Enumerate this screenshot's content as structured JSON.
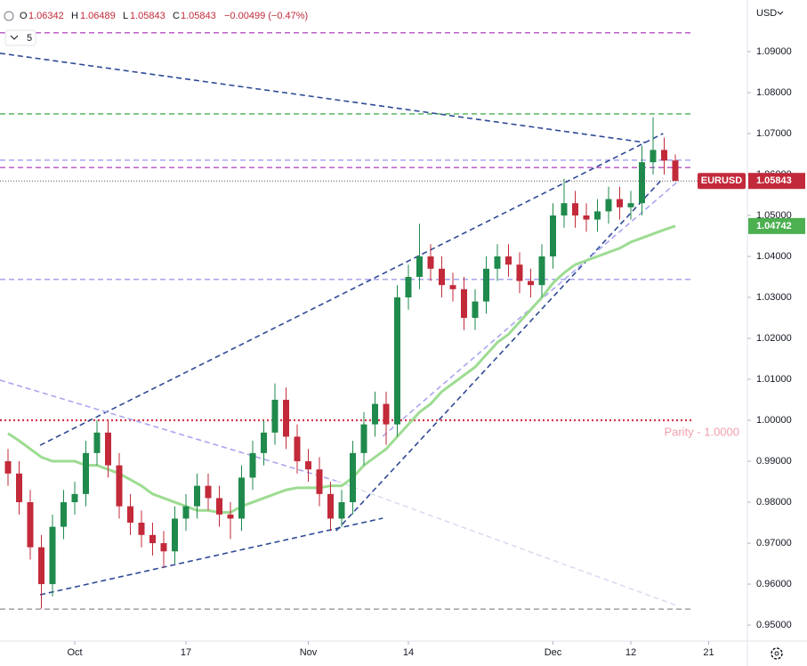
{
  "chart_data": {
    "type": "candlestick",
    "header": {
      "open_key": "O",
      "open": "1.06342",
      "high_key": "H",
      "high": "1.06489",
      "low_key": "L",
      "low": "1.05843",
      "close_key": "C",
      "close": "1.05843",
      "change": "−0.00499 (−0.47%)"
    },
    "indicator_count": "5",
    "currency": "USD",
    "symbol": "EURUSD",
    "categories": [
      null,
      null,
      null,
      null,
      null,
      null,
      "Oct",
      null,
      null,
      null,
      null,
      null,
      null,
      null,
      null,
      null,
      "17",
      null,
      null,
      null,
      null,
      null,
      null,
      null,
      null,
      null,
      null,
      "Nov",
      null,
      null,
      null,
      null,
      null,
      null,
      null,
      null,
      "14",
      null,
      null,
      null,
      null,
      null,
      null,
      null,
      null,
      null,
      null,
      null,
      null,
      "Dec",
      null,
      null,
      null,
      null,
      null,
      null,
      "12",
      null,
      null,
      null,
      null,
      null,
      null,
      "21"
    ],
    "open": [
      0.99,
      0.987,
      0.98,
      0.969,
      0.96,
      0.974,
      0.98,
      0.982,
      0.992,
      0.997,
      0.989,
      0.979,
      0.975,
      0.972,
      0.97,
      0.968,
      0.976,
      0.979,
      0.984,
      0.981,
      0.977,
      0.976,
      0.986,
      0.992,
      0.997,
      1.005,
      0.996,
      0.99,
      0.988,
      0.982,
      0.976,
      0.98,
      0.992,
      0.999,
      1.004,
      0.999,
      1.03,
      1.035,
      1.04,
      1.037,
      1.033,
      1.032,
      1.025,
      1.029,
      1.037,
      1.04,
      1.038,
      1.034,
      1.033,
      1.04,
      1.05,
      1.053,
      1.05,
      1.049,
      1.051,
      1.054,
      1.052,
      1.053,
      1.063,
      1.066,
      1.06342,
      null,
      null,
      null
    ],
    "high": [
      0.993,
      0.99,
      0.983,
      0.972,
      0.977,
      0.983,
      0.985,
      0.995,
      1.0,
      1.0,
      0.992,
      0.982,
      0.978,
      0.975,
      0.973,
      0.979,
      0.982,
      0.987,
      0.987,
      0.984,
      0.98,
      0.989,
      0.995,
      1.0,
      1.009,
      1.008,
      0.999,
      0.993,
      0.991,
      0.985,
      0.983,
      0.995,
      1.002,
      1.007,
      1.007,
      1.033,
      1.038,
      1.048,
      1.043,
      1.04,
      1.036,
      1.035,
      1.032,
      1.04,
      1.043,
      1.043,
      1.041,
      1.037,
      1.043,
      1.053,
      1.059,
      1.056,
      1.053,
      1.054,
      1.057,
      1.057,
      1.056,
      1.067,
      1.074,
      1.069,
      1.06489,
      null,
      null,
      null
    ],
    "low": [
      0.984,
      0.977,
      0.966,
      0.954,
      0.957,
      0.971,
      0.977,
      0.979,
      0.989,
      0.986,
      0.976,
      0.972,
      0.969,
      0.967,
      0.964,
      0.965,
      0.973,
      0.976,
      0.978,
      0.974,
      0.971,
      0.973,
      0.983,
      0.989,
      0.994,
      0.993,
      0.987,
      0.985,
      0.979,
      0.973,
      0.974,
      0.977,
      0.989,
      0.996,
      0.994,
      0.996,
      1.027,
      1.032,
      1.034,
      1.03,
      1.029,
      1.022,
      1.022,
      1.026,
      1.034,
      1.035,
      1.031,
      1.03,
      1.03,
      1.037,
      1.047,
      1.047,
      1.046,
      1.046,
      1.048,
      1.049,
      1.049,
      1.05,
      1.06,
      1.06,
      1.05843,
      null,
      null,
      null
    ],
    "close": [
      0.987,
      0.98,
      0.969,
      0.96,
      0.974,
      0.98,
      0.982,
      0.992,
      0.997,
      0.989,
      0.979,
      0.975,
      0.972,
      0.97,
      0.968,
      0.976,
      0.979,
      0.984,
      0.981,
      0.977,
      0.976,
      0.986,
      0.992,
      0.997,
      1.005,
      0.996,
      0.99,
      0.988,
      0.982,
      0.976,
      0.98,
      0.992,
      0.999,
      1.004,
      0.999,
      1.03,
      1.035,
      1.04,
      1.037,
      1.033,
      1.032,
      1.025,
      1.029,
      1.037,
      1.04,
      1.038,
      1.034,
      1.033,
      1.04,
      1.05,
      1.053,
      1.05,
      1.049,
      1.051,
      1.054,
      1.052,
      1.053,
      1.063,
      1.066,
      1.0634,
      1.05843,
      null,
      null,
      null
    ],
    "up_color": "#1f8a4c",
    "down_color": "#c22a3a",
    "moving_average": {
      "color": "#9ddc92",
      "values": [
        0.9968,
        0.995,
        0.993,
        0.991,
        0.99,
        0.99,
        0.99,
        0.989,
        0.989,
        0.988,
        0.987,
        0.9855,
        0.984,
        0.982,
        0.981,
        0.98,
        0.979,
        0.978,
        0.978,
        0.9775,
        0.9775,
        0.979,
        0.98,
        0.981,
        0.982,
        0.983,
        0.9835,
        0.9835,
        0.9835,
        0.984,
        0.984,
        0.986,
        0.989,
        0.991,
        0.993,
        0.996,
        0.999,
        1.002,
        1.004,
        1.007,
        1.009,
        1.011,
        1.013,
        1.016,
        1.019,
        1.021,
        1.024,
        1.027,
        1.03,
        1.0335,
        1.036,
        1.038,
        1.039,
        1.04,
        1.041,
        1.042,
        1.0435,
        1.0445,
        1.0455,
        1.0465,
        1.04742,
        null,
        null,
        null
      ]
    },
    "levels": [
      {
        "value": 1.0946,
        "color": "#b44fc0",
        "style": "dashed"
      },
      {
        "value": 1.0748,
        "color": "#4caf50",
        "style": "dashed"
      },
      {
        "value": 1.0635,
        "color": "#aaa7f0",
        "style": "dashed"
      },
      {
        "value": 1.0617,
        "color": "#b44fc0",
        "style": "dashed"
      },
      {
        "value": 1.0344,
        "color": "#9f9be8",
        "style": "dashed"
      },
      {
        "value": 1.0,
        "color": "#d6334a",
        "style": "dotted",
        "label": "Parity - 1.0000"
      },
      {
        "value": 0.9539,
        "color": "#a0a0a0",
        "style": "dashed"
      }
    ],
    "trendlines": [
      {
        "points": [
          [
            -0.72,
            1.0896
          ],
          [
            57.3,
            1.0678
          ]
        ],
        "color": "#2f4a96"
      },
      {
        "points": [
          [
            2.88,
            0.9939
          ],
          [
            58.9,
            1.07
          ]
        ],
        "color": "#2f4a96"
      },
      {
        "points": [
          [
            2.88,
            0.9574
          ],
          [
            33.7,
            0.9761
          ]
        ],
        "color": "#2f4a96"
      },
      {
        "points": [
          [
            29.5,
            0.973
          ],
          [
            58.9,
            1.0591
          ]
        ],
        "color": "#2f4a96"
      },
      {
        "points": [
          [
            -0.72,
            1.0098
          ],
          [
            29.5,
            0.9852
          ]
        ],
        "color": "#a9a6f0"
      },
      {
        "points": [
          [
            29.5,
            0.9852
          ],
          [
            60.1,
            0.9548
          ]
        ],
        "color": "#dcdcf0"
      },
      {
        "points": [
          [
            33.7,
            0.9961
          ],
          [
            60.1,
            1.058
          ]
        ],
        "color": "#a9a6f0"
      }
    ],
    "ylim": [
      0.9461,
      1.1026
    ],
    "yticks": [
      {
        "value": 0.95,
        "label": "0.95000"
      },
      {
        "value": 0.96,
        "label": "0.96000"
      },
      {
        "value": 0.97,
        "label": "0.97000"
      },
      {
        "value": 0.98,
        "label": "0.98000"
      },
      {
        "value": 0.99,
        "label": "0.99000"
      },
      {
        "value": 1.0,
        "label": "1.00000"
      },
      {
        "value": 1.01,
        "label": "1.01000"
      },
      {
        "value": 1.02,
        "label": "1.02000"
      },
      {
        "value": 1.03,
        "label": "1.03000"
      },
      {
        "value": 1.04,
        "label": "1.04000"
      },
      {
        "value": 1.05,
        "label": "1.05000"
      },
      {
        "value": 1.06,
        "label": "1.06000"
      },
      {
        "value": 1.07,
        "label": "1.07000"
      },
      {
        "value": 1.08,
        "label": "1.08000"
      },
      {
        "value": 1.09,
        "label": "1.09000"
      }
    ],
    "grid": false
  }
}
